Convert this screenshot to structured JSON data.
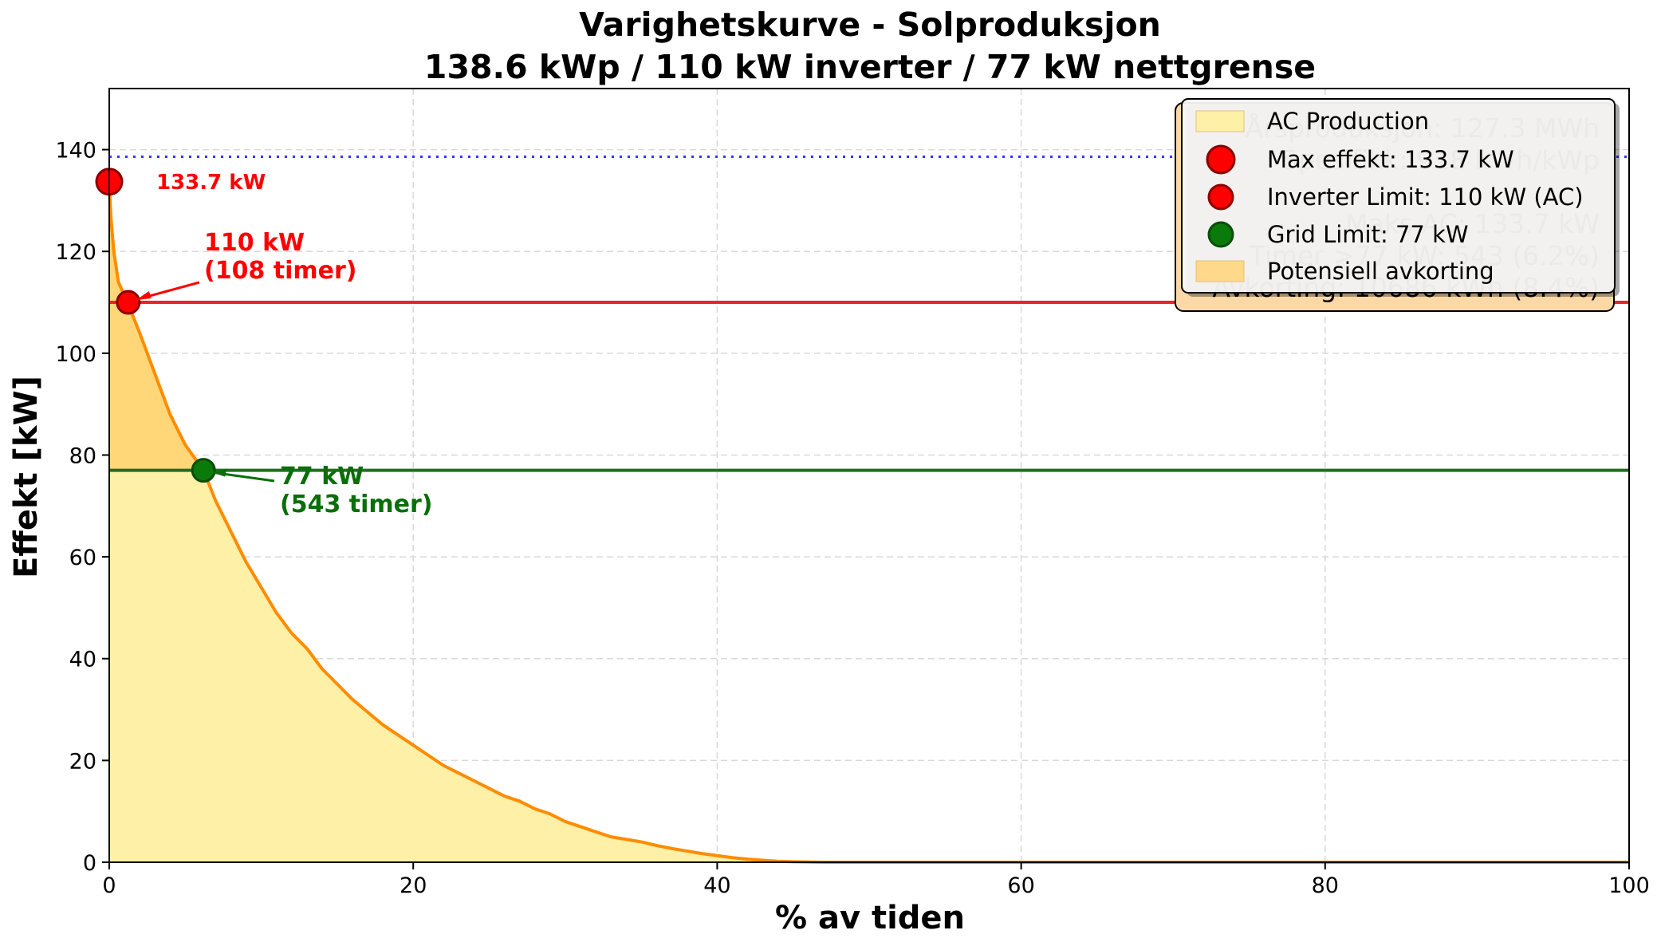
{
  "chart_data": {
    "type": "area",
    "title": "Varighetskurve - Solproduksjon",
    "subtitle": "138.6 kWp / 110 kW inverter / 77 kW nettgrense",
    "xlabel": "% av tiden",
    "ylabel": "Effekt [kW]",
    "xlim": [
      0,
      100
    ],
    "ylim": [
      0,
      152
    ],
    "xticks": [
      "0",
      "20",
      "40",
      "60",
      "80",
      "100"
    ],
    "yticks": [
      "0",
      "20",
      "40",
      "60",
      "80",
      "100",
      "120",
      "140"
    ],
    "grid": true,
    "legend_position": "top-right",
    "series": [
      {
        "name": "AC Production",
        "x": [
          0,
          0.1,
          0.3,
          0.6,
          1.2,
          2,
          3,
          4,
          5,
          6.2,
          7,
          8,
          9,
          10,
          11,
          12,
          13,
          14,
          15,
          16,
          17,
          18,
          19,
          20,
          21,
          22,
          23,
          24,
          25,
          26,
          27,
          28,
          29,
          30,
          31,
          32,
          33,
          34,
          35,
          36,
          37,
          38,
          39,
          40,
          41,
          42,
          43,
          44,
          45,
          46,
          47,
          50,
          60,
          70,
          80,
          90,
          100
        ],
        "values": [
          133.7,
          127,
          120,
          114,
          110,
          104,
          96,
          88,
          82,
          77,
          71,
          65,
          59,
          54,
          49,
          45,
          42,
          38,
          35,
          32,
          29.5,
          27,
          25,
          23,
          21,
          19,
          17.5,
          16,
          14.5,
          13,
          12,
          10.5,
          9.5,
          8,
          7,
          6,
          5,
          4.5,
          4,
          3.3,
          2.7,
          2.2,
          1.7,
          1.3,
          0.9,
          0.6,
          0.4,
          0.2,
          0.1,
          0.05,
          0,
          0,
          0,
          0,
          0,
          0,
          0
        ]
      }
    ],
    "reference_lines": [
      {
        "name": "Installed DC",
        "y": 138.6,
        "color": "#3333ff",
        "style": "dotted"
      },
      {
        "name": "Inverter Limit",
        "y": 110,
        "color": "#ee2222",
        "style": "solid"
      },
      {
        "name": "Grid Limit",
        "y": 77,
        "color": "#1f6e1f",
        "style": "solid"
      }
    ],
    "markers": [
      {
        "name": "Max effekt",
        "x": 0,
        "y": 133.7,
        "color": "#ff0000",
        "label": "133.7 kW"
      },
      {
        "name": "Inverter Limit",
        "x": 1.25,
        "y": 110,
        "color": "#ff0000",
        "label_line1": "110 kW",
        "label_line2": "(108 timer)"
      },
      {
        "name": "Grid Limit",
        "x": 6.2,
        "y": 77,
        "color": "#0a7a0a",
        "label_line1": "77 kW",
        "label_line2": "(543 timer)"
      }
    ],
    "legend": [
      {
        "label": "AC Production",
        "kind": "patch",
        "color": "#fff0a8"
      },
      {
        "label": "Max effekt: 133.7 kW",
        "kind": "marker",
        "color": "#ff0000"
      },
      {
        "label": "Inverter Limit: 110 kW (AC)",
        "kind": "marker",
        "color": "#ff0000"
      },
      {
        "label": "Grid Limit: 77 kW",
        "kind": "marker",
        "color": "#0a7a0a"
      },
      {
        "label": "Potensiell avkorting",
        "kind": "patch",
        "color": "#ffd98a"
      }
    ],
    "info_box_lines": [
      "Årsproduksjon: 127.3 MWh",
      "Spesifikk: 918 kWh/kWp",
      "",
      "Maks AC: 133.7 kW",
      "Timer >77 kW: 543 (6.2%)",
      "Avkorting: 10686 kWh (8.4%)"
    ],
    "colors": {
      "curve": "#ff8c00",
      "area_fill": "#fff0a8",
      "clip_fill": "#ffd473",
      "grid": "#d9d9d9"
    }
  }
}
